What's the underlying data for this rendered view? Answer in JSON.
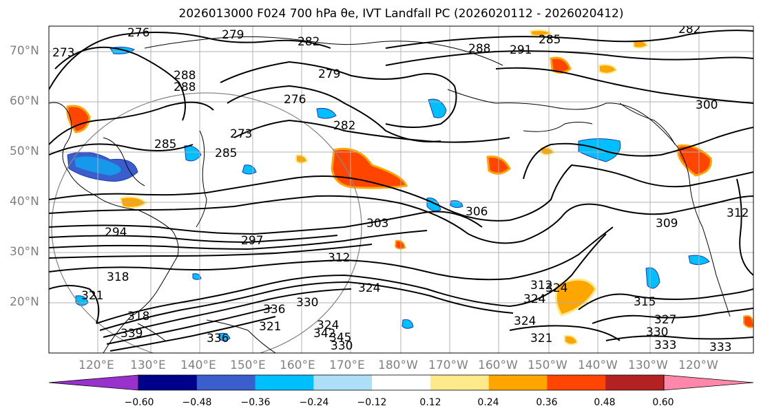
{
  "title": "2026013000 F024 700 hPa θe, IVT Landfall PC (2026020112 - 2026020412)",
  "lat_labels": [
    "70°N",
    "60°N",
    "50°N",
    "40°N",
    "30°N",
    "20°N"
  ],
  "lon_labels": [
    "120°E",
    "130°E",
    "140°E",
    "150°E",
    "160°E",
    "170°E",
    "180°W",
    "170°W",
    "160°W",
    "150°W",
    "140°W",
    "130°W",
    "120°W"
  ],
  "colorbar": {
    "colors": [
      "#9932CC",
      "#00008B",
      "#3A5FCD",
      "#00BFFF",
      "#ADDFF8",
      "#FFFFFF",
      "#FFE98A",
      "#FFA500",
      "#FF4500",
      "#B22222",
      "#FF88AA"
    ],
    "ticks": [
      "−0.60",
      "−0.48",
      "−0.36",
      "−0.24",
      "−0.12",
      "0.12",
      "0.24",
      "0.36",
      "0.48",
      "0.60"
    ]
  },
  "contour_labels": [
    "276",
    "279",
    "282",
    "273",
    "288",
    "291",
    "285",
    "282",
    "279",
    "276",
    "273",
    "285",
    "285",
    "288",
    "300",
    "297",
    "294",
    "303",
    "306",
    "309",
    "312",
    "318",
    "321",
    "324",
    "324",
    "324",
    "315",
    "327",
    "330",
    "333",
    "333",
    "336",
    "339",
    "342",
    "345",
    "330",
    "318",
    "321",
    "312",
    "324",
    "324",
    "321",
    "330",
    "336",
    "312",
    "282",
    "288"
  ]
}
